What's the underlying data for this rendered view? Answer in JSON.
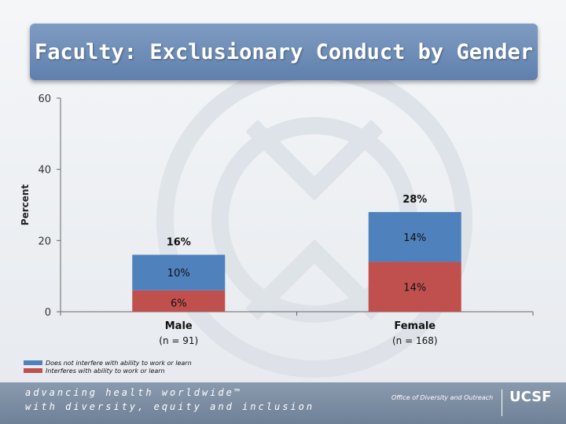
{
  "slide": {
    "title": "Faculty: Exclusionary Conduct by Gender"
  },
  "chart_data": {
    "type": "bar",
    "stacked": true,
    "title": "Faculty: Exclusionary Conduct by Gender",
    "xlabel": "",
    "ylabel": "Percent",
    "ylim": [
      0,
      60
    ],
    "yticks": [
      0,
      20,
      40,
      60
    ],
    "grid": false,
    "categories": [
      "Male",
      "Female"
    ],
    "category_subtitles": [
      "(n = 91)",
      "(n = 168)"
    ],
    "series": [
      {
        "name": "Interferes with ability to work or learn",
        "color": "#c0504d",
        "values": [
          6,
          14
        ],
        "labels": [
          "6%",
          "14%"
        ]
      },
      {
        "name": "Does not interfere with ability to work or learn",
        "color": "#4f81bd",
        "values": [
          10,
          14
        ],
        "labels": [
          "10%",
          "14%"
        ]
      }
    ],
    "totals": [
      16,
      28
    ],
    "total_labels": [
      "16%",
      "28%"
    ],
    "legend_placement": "bottom-left",
    "legend_order": [
      "Does not interfere with ability to work or learn",
      "Interferes with ability to work or learn"
    ]
  },
  "footer": {
    "tagline_line1": "advancing health worldwide™",
    "tagline_line2": "with diversity, equity and inclusion",
    "office": "Office of Diversity and Outreach",
    "logo": "UCSF"
  }
}
